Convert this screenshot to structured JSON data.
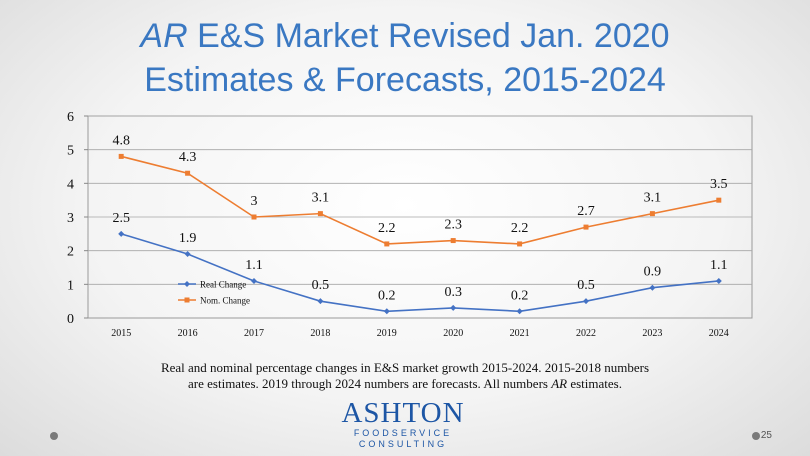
{
  "title": {
    "em": "AR",
    "line1_rest": " E&S Market Revised Jan. 2020",
    "line2": "Estimates & Forecasts, 2015-2024"
  },
  "chart_data": {
    "type": "line",
    "categories": [
      "2015",
      "2016",
      "2017",
      "2018",
      "2019",
      "2020",
      "2021",
      "2022",
      "2023",
      "2024"
    ],
    "series": [
      {
        "name": "Real Change",
        "values": [
          2.5,
          1.9,
          1.1,
          0.5,
          0.2,
          0.3,
          0.2,
          0.5,
          0.9,
          1.1
        ],
        "color": "#4472c4"
      },
      {
        "name": "Nom. Change",
        "values": [
          4.8,
          4.3,
          3,
          3.1,
          2.2,
          2.3,
          2.2,
          2.7,
          3.1,
          3.5
        ],
        "color": "#ed7d31"
      }
    ],
    "ylim": [
      0,
      6
    ],
    "yticks": [
      "0",
      "1",
      "2",
      "3",
      "4",
      "5",
      "6"
    ],
    "grid": true,
    "legend": "lower-left inside plot",
    "data_labels": true
  },
  "caption": {
    "line1": "Real and nominal percentage changes in E&S market growth 2015-2024. 2015-2018 numbers",
    "line2_pre": "are estimates. 2019 through 2024 numbers are forecasts. All numbers ",
    "line2_em": "AR",
    "line2_post": " estimates."
  },
  "logo": {
    "main": "ASHTON",
    "sub1": "FOODSERVICE",
    "sub2": "CONSULTING"
  },
  "page_number": "25"
}
